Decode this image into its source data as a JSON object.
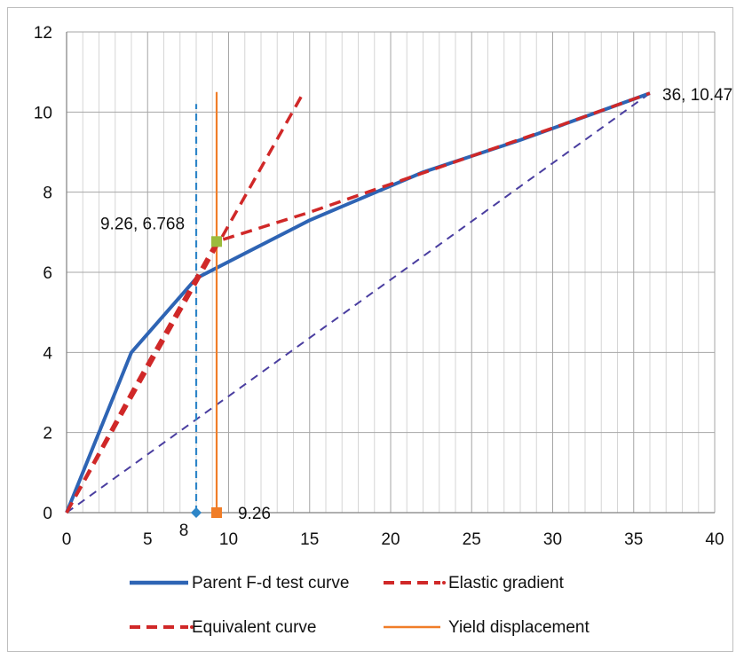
{
  "chart_data": {
    "type": "line",
    "title": "",
    "xlabel": "",
    "ylabel": "",
    "xlim": [
      0,
      40
    ],
    "ylim": [
      0,
      12
    ],
    "x_ticks": [
      0,
      5,
      10,
      15,
      20,
      25,
      30,
      35,
      40
    ],
    "y_ticks": [
      0,
      2,
      4,
      6,
      8,
      10,
      12
    ],
    "grid": true,
    "legend_position": "bottom",
    "series": [
      {
        "name": "Parent F-d test curve",
        "color": "#2e64b4",
        "style": "solid",
        "points": [
          [
            0,
            0
          ],
          [
            4,
            4
          ],
          [
            8,
            5.85
          ],
          [
            15,
            7.3
          ],
          [
            22,
            8.5
          ],
          [
            28,
            9.3
          ],
          [
            36,
            10.47
          ]
        ]
      },
      {
        "name": "Elastic gradient",
        "color": "#d02828",
        "style": "dashed",
        "points": [
          [
            0,
            0
          ],
          [
            14.5,
            10.4
          ]
        ]
      },
      {
        "name": "Equivalent curve",
        "color": "#d02828",
        "style": "dashed",
        "points": [
          [
            0,
            0
          ],
          [
            4,
            3
          ],
          [
            9.26,
            6.768
          ],
          [
            15,
            7.5
          ],
          [
            20,
            8.2
          ],
          [
            25,
            8.9
          ],
          [
            30,
            9.6
          ],
          [
            36,
            10.47
          ]
        ]
      },
      {
        "name": "Yield displacement",
        "color": "#f07d28",
        "style": "solid",
        "points": [
          [
            9.26,
            0
          ],
          [
            9.26,
            10.5
          ]
        ]
      }
    ],
    "secant_line": {
      "color": "#4a3ea0",
      "style": "dashed",
      "points": [
        [
          0,
          0
        ],
        [
          36,
          10.47
        ]
      ]
    },
    "reference_line": {
      "color": "#2e86c8",
      "style": "dashed",
      "points": [
        [
          8,
          0
        ],
        [
          8,
          10.2
        ]
      ]
    },
    "markers": [
      {
        "x": 8,
        "y": 0,
        "shape": "diamond",
        "color": "#2e86c8"
      },
      {
        "x": 9.26,
        "y": 0,
        "shape": "square",
        "color": "#f07d28"
      },
      {
        "x": 9.26,
        "y": 6.768,
        "shape": "square",
        "color": "#9bbb3c"
      }
    ],
    "annotations": [
      {
        "text": "9.26, 6.768",
        "x": 9.26,
        "y": 6.768
      },
      {
        "text": "36, 10.47",
        "x": 36,
        "y": 10.47
      },
      {
        "text": "8",
        "x": 8,
        "y": 0
      },
      {
        "text": "9.26",
        "x": 9.26,
        "y": 0
      }
    ]
  }
}
